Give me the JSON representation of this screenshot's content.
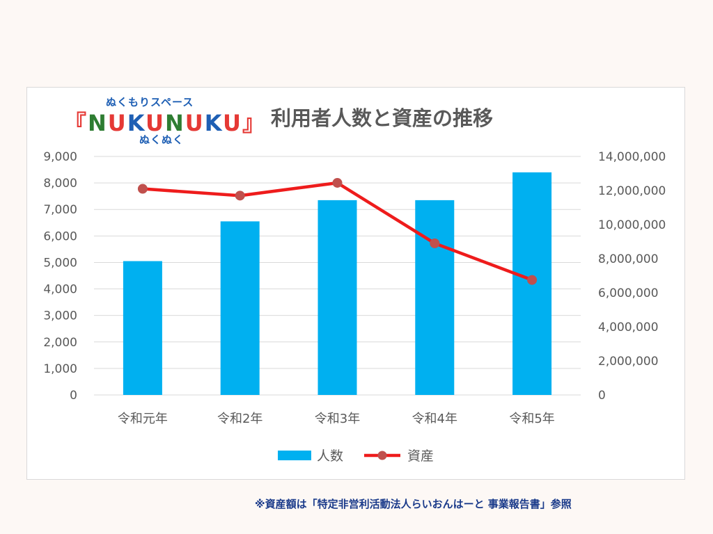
{
  "logo": {
    "top_text": "ぬくもりスペース",
    "main_left_bracket": "『",
    "main_letters": [
      "N",
      "U",
      "K",
      "U",
      "N",
      "U",
      "K",
      "U"
    ],
    "main_right_bracket": "』",
    "bottom_text": "ぬくぬく"
  },
  "chart_data": {
    "type": "bar",
    "title": "利用者人数と資産の推移",
    "categories": [
      "令和元年",
      "令和2年",
      "令和3年",
      "令和4年",
      "令和5年"
    ],
    "series": [
      {
        "name": "人数",
        "type": "bar",
        "axis": "left",
        "color": "#00b0f0",
        "values": [
          5050,
          6550,
          7350,
          7350,
          8400
        ]
      },
      {
        "name": "資産",
        "type": "line",
        "axis": "right",
        "color": "#ee1c1c",
        "marker_color": "#c0504d",
        "values": [
          12100000,
          11700000,
          12450000,
          8900000,
          6750000
        ]
      }
    ],
    "y_left": {
      "min": 0,
      "max": 9000,
      "ticks": [
        "0",
        "1,000",
        "2,000",
        "3,000",
        "4,000",
        "5,000",
        "6,000",
        "7,000",
        "8,000",
        "9,000"
      ]
    },
    "y_right": {
      "min": 0,
      "max": 14000000,
      "ticks": [
        "0",
        "2,000,000",
        "4,000,000",
        "6,000,000",
        "8,000,000",
        "10,000,000",
        "12,000,000",
        "14,000,000"
      ]
    },
    "grid": true,
    "legend": {
      "position": "bottom",
      "items": [
        "人数",
        "資産"
      ]
    }
  },
  "footnote": "※資産額は「特定非営利活動法人らいおんはーと 事業報告書」参照"
}
